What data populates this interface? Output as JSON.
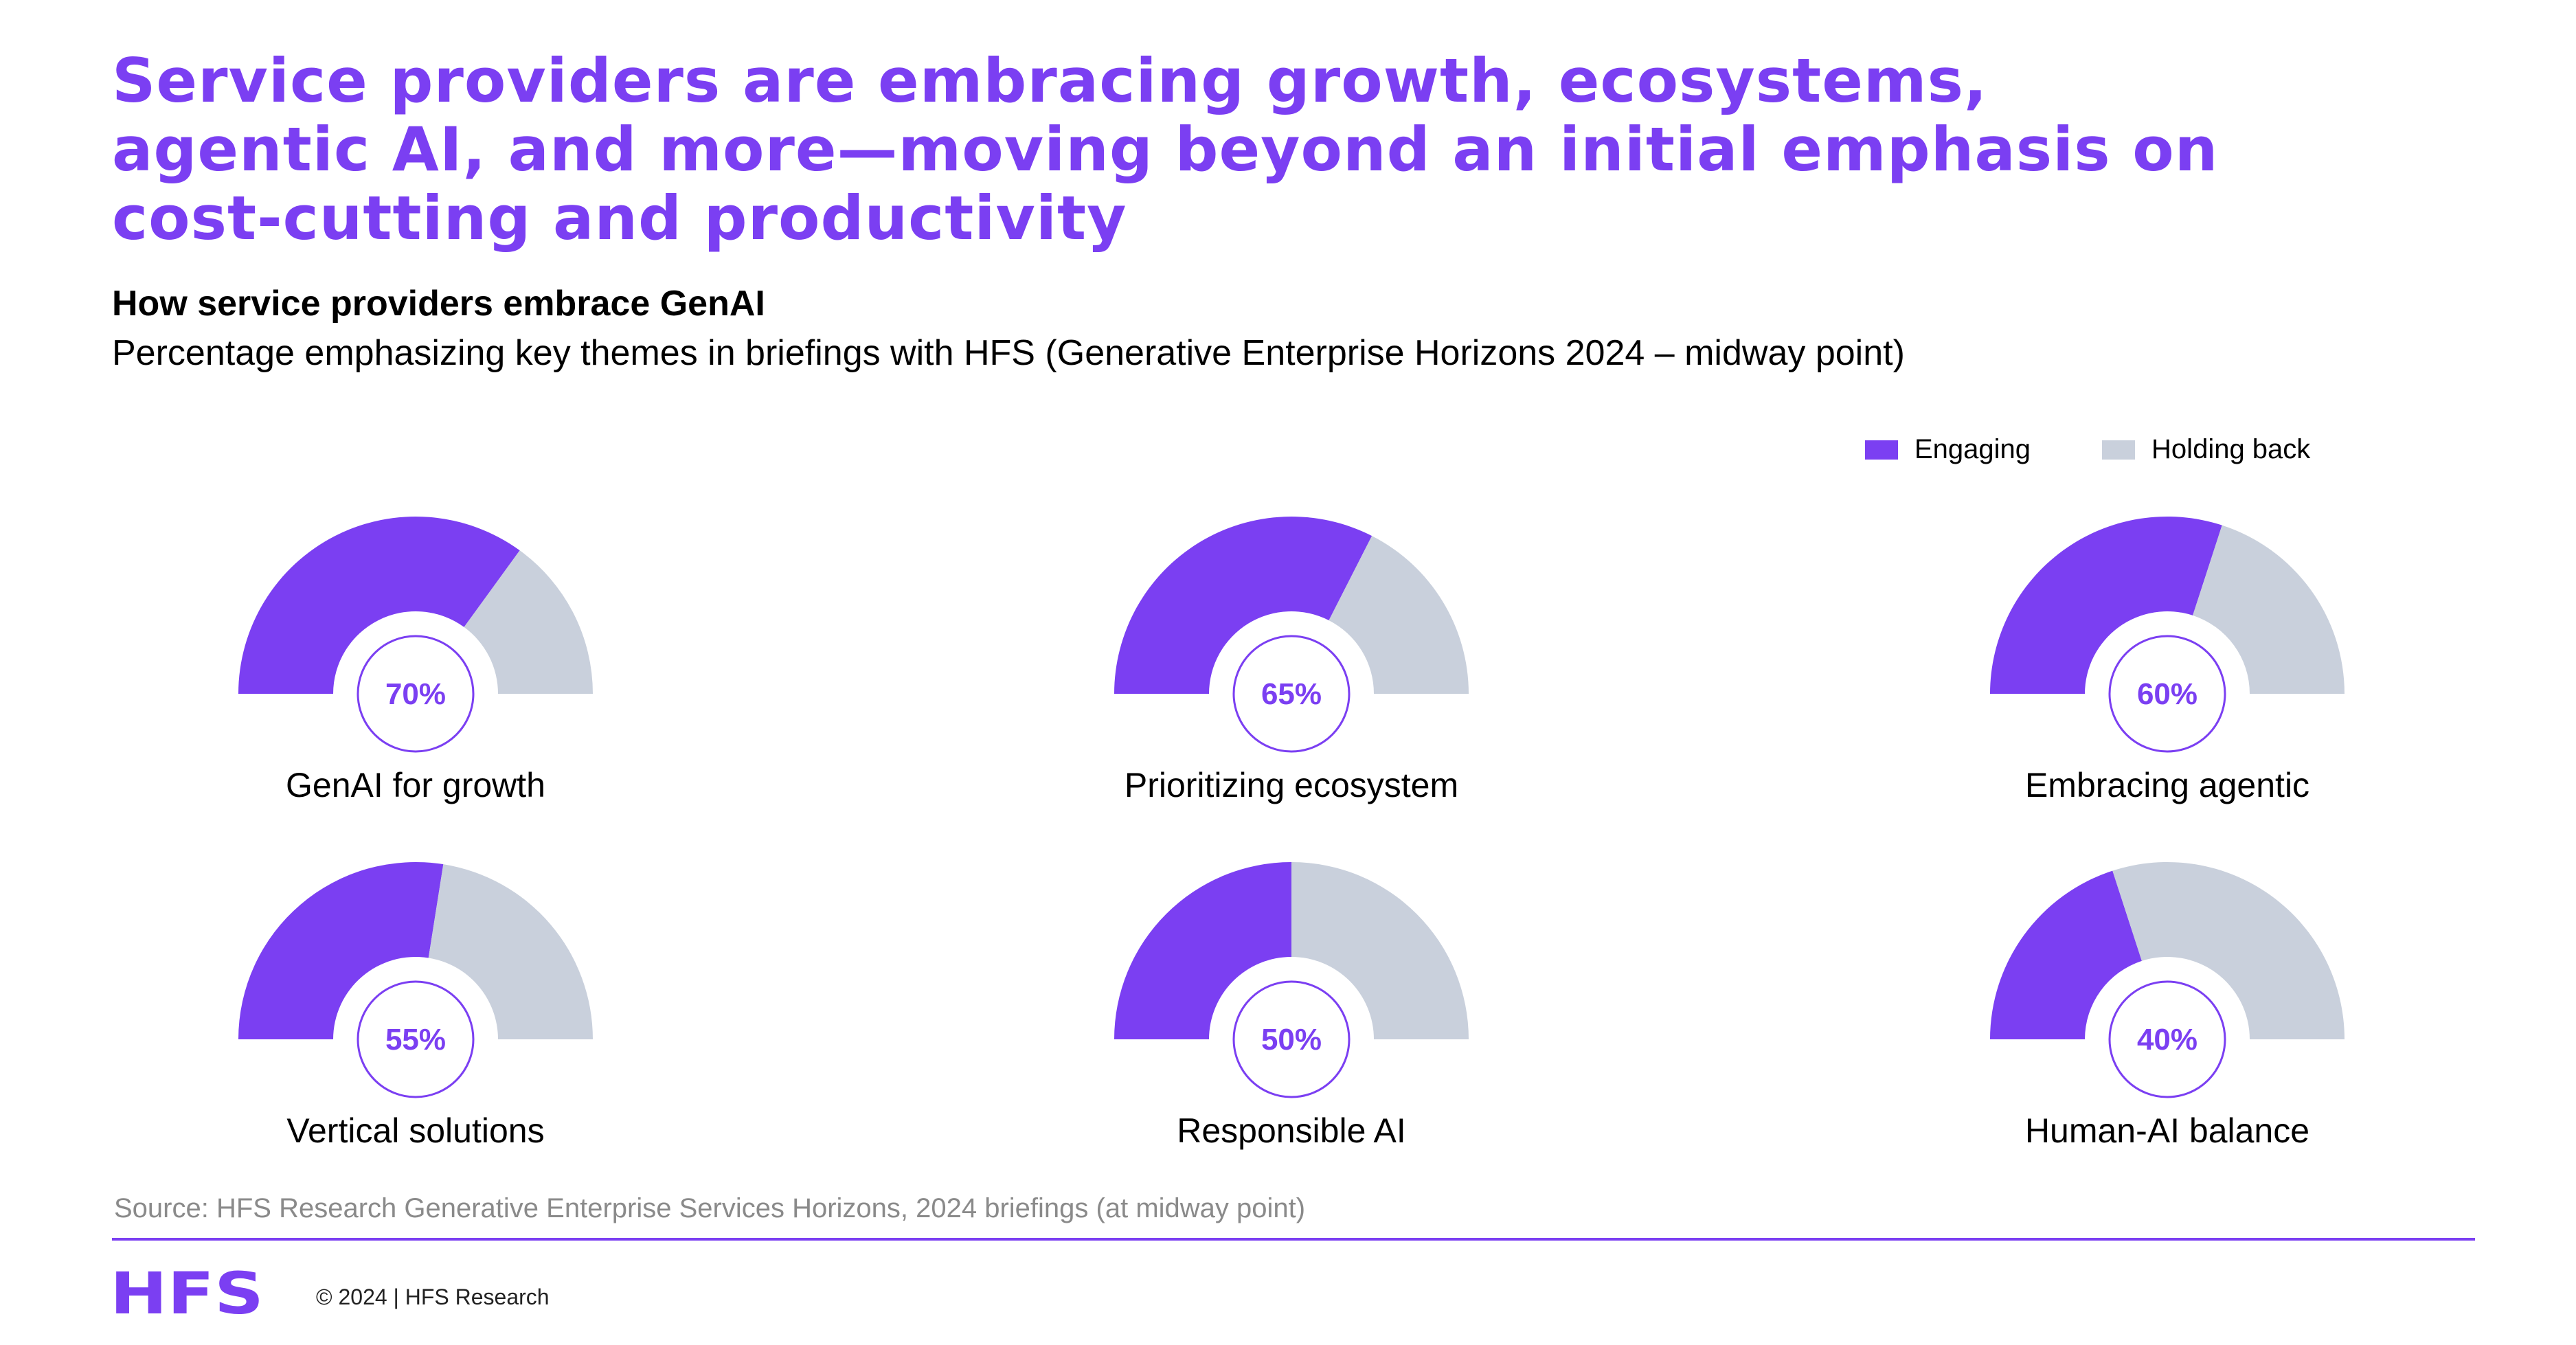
{
  "headline": {
    "line1": "Service providers are embracing growth, ecosystems,",
    "line2": "agentic AI, and more—moving beyond an initial emphasis on",
    "line3": "cost-cutting and productivity"
  },
  "chart_heading": "How service providers embrace GenAI",
  "chart_subheading": "Percentage emphasizing key themes in briefings with HFS (Generative Enterprise Horizons 2024 – midway point)",
  "legend": {
    "engaging_label": "Engaging",
    "holding_label": "Holding back"
  },
  "colors": {
    "accent": "#7b3ff2",
    "holding_back": "#c9d0dc"
  },
  "chart_data": {
    "type": "gauge",
    "title": "How service providers embrace GenAI",
    "subtitle": "Percentage emphasizing key themes in briefings with HFS (Generative Enterprise Horizons 2024 – midway point)",
    "series": [
      {
        "name": "Engaging",
        "color": "#7b3ff2"
      },
      {
        "name": "Holding back",
        "color": "#c9d0dc"
      }
    ],
    "items": [
      {
        "label": "GenAI for growth",
        "engaging": 70,
        "display": "70%"
      },
      {
        "label": "Prioritizing ecosystem",
        "engaging": 65,
        "display": "65%"
      },
      {
        "label": "Embracing agentic",
        "engaging": 60,
        "display": "60%"
      },
      {
        "label": "Vertical solutions",
        "engaging": 55,
        "display": "55%"
      },
      {
        "label": "Responsible AI",
        "engaging": 50,
        "display": "50%"
      },
      {
        "label": "Human-AI balance",
        "engaging": 40,
        "display": "40%"
      }
    ],
    "ylim": [
      0,
      100
    ],
    "legend_position": "top-right"
  },
  "source": "Source: HFS Research Generative Enterprise Services Horizons, 2024 briefings (at midway point)",
  "footer": {
    "logo_text": "HFS",
    "copyright": "© 2024 | HFS Research"
  }
}
